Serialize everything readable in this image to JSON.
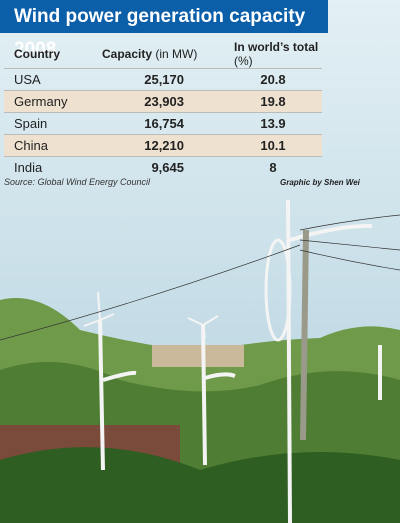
{
  "title": "Wind power generation capacity 2008",
  "table": {
    "header": [
      {
        "text": "Country"
      },
      {
        "text": "Capacity",
        "unit": "(in MW)"
      },
      {
        "text": "In world’s total",
        "unit": "(%)"
      }
    ],
    "rows": [
      [
        "USA",
        "25,170",
        "20.8"
      ],
      [
        "Germany",
        "23,903",
        "19.8"
      ],
      [
        "Spain",
        "16,754",
        "13.9"
      ],
      [
        "China",
        "12,210",
        "10.1"
      ],
      [
        "India",
        "9,645",
        "8"
      ]
    ]
  },
  "source": "Source: Global Wind Energy Council",
  "credit": "Graphic by Shen Wei"
}
